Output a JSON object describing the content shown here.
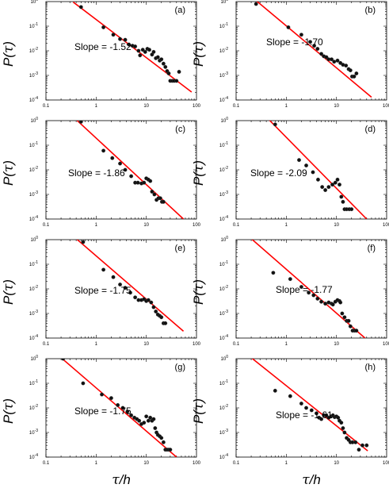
{
  "axis_labels": {
    "y_prefix": "P(",
    "y_symbol": "τ",
    "y_suffix": ")",
    "x_symbol": "τ",
    "x_suffix": "/h"
  },
  "chart_data": [
    {
      "type": "scatter",
      "label": "(a)",
      "annotation": "Slope = -1.52",
      "slope": -1.52,
      "xscale": "log",
      "yscale": "log",
      "xlim": [
        0.1,
        100
      ],
      "ylim": [
        0.0001,
        1
      ],
      "xticks": [
        "0.1",
        "1",
        "10",
        "100"
      ],
      "yticks": [
        "10^-4",
        "10^-3",
        "10^-2",
        "10^-1",
        "10^0"
      ],
      "fit_line": {
        "x": [
          0.35,
          80
        ],
        "y": [
          0.95,
          0.00021
        ],
        "color": "#ff0000"
      },
      "points": {
        "x": [
          0.5,
          1.4,
          2.2,
          3,
          3.8,
          4.5,
          5.3,
          6,
          7,
          7.5,
          8.5,
          9.5,
          10.5,
          11.5,
          13,
          14,
          15.5,
          17,
          18.5,
          20,
          22,
          24,
          26,
          28,
          30,
          33,
          36,
          40,
          45
        ],
        "y": [
          0.6,
          0.09,
          0.045,
          0.03,
          0.028,
          0.018,
          0.016,
          0.015,
          0.01,
          0.0065,
          0.011,
          0.009,
          0.012,
          0.011,
          0.007,
          0.009,
          0.005,
          0.0055,
          0.004,
          0.0045,
          0.003,
          0.0022,
          0.0015,
          0.0012,
          0.0006,
          0.0006,
          0.0006,
          0.0006,
          0.0014
        ]
      }
    },
    {
      "type": "scatter",
      "label": "(b)",
      "annotation": "Slope = -1.70",
      "slope": -1.7,
      "xscale": "log",
      "yscale": "log",
      "xlim": [
        0.1,
        100
      ],
      "ylim": [
        0.0001,
        1
      ],
      "xticks": [
        "0.1",
        "1",
        "10",
        "100"
      ],
      "yticks": [
        "10^-4",
        "10^-3",
        "10^-2",
        "10^-1",
        "10^0"
      ],
      "fit_line": {
        "x": [
          0.25,
          50
        ],
        "y": [
          1.1,
          0.00013
        ],
        "color": "#ff0000"
      },
      "points": {
        "x": [
          0.25,
          1.1,
          2,
          3,
          3.6,
          4.2,
          5,
          5.6,
          6.3,
          7,
          8,
          9,
          10.5,
          12,
          13.5,
          15.5,
          17.5,
          19,
          20.5,
          22.5,
          25
        ],
        "y": [
          0.8,
          0.09,
          0.045,
          0.023,
          0.016,
          0.012,
          0.0075,
          0.006,
          0.0055,
          0.0045,
          0.0045,
          0.0036,
          0.004,
          0.0032,
          0.0027,
          0.0025,
          0.0018,
          0.0016,
          0.0009,
          0.0009,
          0.0012
        ]
      }
    },
    {
      "type": "scatter",
      "label": "(c)",
      "annotation": "Slope = -1.86",
      "slope": -1.86,
      "xscale": "log",
      "yscale": "log",
      "xlim": [
        0.1,
        100
      ],
      "ylim": [
        0.0001,
        1
      ],
      "xticks": [
        "0.1",
        "1",
        "10",
        "100"
      ],
      "yticks": [
        "10^-4",
        "10^-3",
        "10^-2",
        "10^-1",
        "10^0"
      ],
      "fit_line": {
        "x": [
          0.4,
          55
        ],
        "y": [
          1.1,
          0.0001
        ],
        "color": "#ff0000"
      },
      "points": {
        "x": [
          0.5,
          1.4,
          2.1,
          3,
          3.8,
          5,
          6,
          6.8,
          8,
          9,
          10,
          11,
          12,
          13,
          14.5,
          16,
          17.5,
          19,
          20.5,
          22
        ],
        "y": [
          0.9,
          0.06,
          0.03,
          0.018,
          0.01,
          0.0055,
          0.003,
          0.003,
          0.0028,
          0.003,
          0.0045,
          0.004,
          0.0035,
          0.0013,
          0.001,
          0.0006,
          0.0007,
          0.0007,
          0.0005,
          0.0005
        ]
      }
    },
    {
      "type": "scatter",
      "label": "(d)",
      "annotation": "Slope = -2.09",
      "slope": -2.09,
      "xscale": "log",
      "yscale": "log",
      "xlim": [
        0.1,
        100
      ],
      "ylim": [
        0.0001,
        1
      ],
      "xticks": [
        "0.1",
        "1",
        "10",
        "100"
      ],
      "yticks": [
        "10^-4",
        "10^-3",
        "10^-2",
        "10^-1",
        "10^0"
      ],
      "fit_line": {
        "x": [
          0.45,
          40
        ],
        "y": [
          1.1,
          0.0001
        ],
        "color": "#ff0000"
      },
      "points": {
        "x": [
          0.6,
          1.8,
          2.5,
          3.4,
          4.3,
          5.2,
          6,
          7,
          8.3,
          9.5,
          10.5,
          11.5,
          12.5,
          13.5,
          14.5,
          16,
          18,
          20
        ],
        "y": [
          0.7,
          0.025,
          0.015,
          0.008,
          0.004,
          0.002,
          0.0015,
          0.002,
          0.0025,
          0.003,
          0.004,
          0.0025,
          0.0008,
          0.0005,
          0.00025,
          0.00025,
          0.00025,
          0.00025
        ]
      }
    },
    {
      "type": "scatter",
      "label": "(e)",
      "annotation": "Slope = -1.75",
      "slope": -1.75,
      "xscale": "log",
      "yscale": "log",
      "xlim": [
        0.1,
        100
      ],
      "ylim": [
        0.0001,
        1
      ],
      "xticks": [
        "0.1",
        "1",
        "10",
        "100"
      ],
      "yticks": [
        "10^-4",
        "10^-3",
        "10^-2",
        "10^-1",
        "10^0"
      ],
      "fit_line": {
        "x": [
          0.4,
          55
        ],
        "y": [
          1.1,
          0.00019
        ],
        "color": "#ff0000"
      },
      "points": {
        "x": [
          0.55,
          1.4,
          2.2,
          3,
          3.8,
          4.8,
          6,
          7,
          8,
          9,
          10,
          11,
          12.5,
          14,
          15.5,
          17,
          18.5,
          20,
          22,
          24
        ],
        "y": [
          0.8,
          0.06,
          0.03,
          0.015,
          0.011,
          0.007,
          0.0045,
          0.0035,
          0.0035,
          0.0038,
          0.0032,
          0.0035,
          0.0028,
          0.0018,
          0.0012,
          0.0009,
          0.0008,
          0.0007,
          0.0004,
          0.0004
        ]
      }
    },
    {
      "type": "scatter",
      "label": "(f)",
      "annotation": "Slope = -1.77",
      "slope": -1.77,
      "xscale": "log",
      "yscale": "log",
      "xlim": [
        0.1,
        100
      ],
      "ylim": [
        0.0001,
        1
      ],
      "xticks": [
        "0.1",
        "1",
        "10",
        "100"
      ],
      "yticks": [
        "10^-4",
        "10^-3",
        "10^-2",
        "10^-1",
        "10^0"
      ],
      "fit_line": {
        "x": [
          0.2,
          37
        ],
        "y": [
          1.1,
          0.0001
        ],
        "color": "#ff0000"
      },
      "points": {
        "x": [
          0.55,
          1.2,
          2,
          2.8,
          3.5,
          4.2,
          5,
          6,
          7,
          8,
          8.5,
          9.5,
          10.5,
          11.5,
          12,
          13,
          14.5,
          16,
          17.5,
          19,
          21,
          23,
          25
        ],
        "y": [
          0.045,
          0.025,
          0.012,
          0.007,
          0.0055,
          0.004,
          0.003,
          0.0025,
          0.0028,
          0.0025,
          0.0023,
          0.003,
          0.0035,
          0.0032,
          0.0028,
          0.001,
          0.0007,
          0.0005,
          0.0005,
          0.0003,
          0.0002,
          0.0002,
          0.0002
        ]
      }
    },
    {
      "type": "scatter",
      "label": "(g)",
      "annotation": "Slope = -1.75",
      "slope": -1.75,
      "xscale": "log",
      "yscale": "log",
      "xlim": [
        0.1,
        100
      ],
      "ylim": [
        0.0001,
        1
      ],
      "xticks": [
        "0.1",
        "1",
        "10",
        "100"
      ],
      "yticks": [
        "10^-4",
        "10^-3",
        "10^-2",
        "10^-1",
        "10^0"
      ],
      "fit_line": {
        "x": [
          0.2,
          40
        ],
        "y": [
          1.1,
          0.0001
        ],
        "color": "#ff0000"
      },
      "points": {
        "x": [
          0.22,
          0.55,
          1.3,
          2,
          2.7,
          3.4,
          4.2,
          5,
          5.8,
          6.5,
          7.2,
          8,
          9,
          10,
          11,
          12,
          13,
          14,
          15,
          16,
          17,
          18.5,
          20,
          22,
          24,
          26,
          28,
          30
        ],
        "y": [
          1,
          0.1,
          0.035,
          0.025,
          0.013,
          0.01,
          0.007,
          0.005,
          0.004,
          0.0035,
          0.003,
          0.0022,
          0.0025,
          0.0045,
          0.003,
          0.004,
          0.003,
          0.0035,
          0.0015,
          0.001,
          0.0008,
          0.0007,
          0.0006,
          0.0004,
          0.0002,
          0.0002,
          0.0002,
          0.0002
        ]
      }
    },
    {
      "type": "scatter",
      "label": "(h)",
      "annotation": "Slope = -1.61",
      "slope": -1.61,
      "xscale": "log",
      "yscale": "log",
      "xlim": [
        0.1,
        100
      ],
      "ylim": [
        0.0001,
        1
      ],
      "xticks": [
        "0.1",
        "1",
        "10",
        "100"
      ],
      "yticks": [
        "10^-4",
        "10^-3",
        "10^-2",
        "10^-1",
        "10^0"
      ],
      "fit_line": {
        "x": [
          0.2,
          42
        ],
        "y": [
          1.1,
          0.00018
        ],
        "color": "#ff0000"
      },
      "points": {
        "x": [
          0.6,
          1.2,
          2,
          2.5,
          3.2,
          4,
          4.5,
          5,
          5.6,
          6.3,
          7,
          7.8,
          8.5,
          9.2,
          10,
          10.8,
          11.5,
          12.5,
          13.5,
          14.5,
          16,
          17.5,
          19,
          21,
          24,
          28,
          33,
          40
        ],
        "y": [
          0.05,
          0.03,
          0.015,
          0.01,
          0.008,
          0.006,
          0.004,
          0.0035,
          0.005,
          0.005,
          0.004,
          0.0045,
          0.005,
          0.0042,
          0.0045,
          0.004,
          0.003,
          0.0025,
          0.0015,
          0.001,
          0.0006,
          0.0005,
          0.0004,
          0.0004,
          0.0004,
          0.0002,
          0.0003,
          0.0003
        ]
      }
    }
  ]
}
